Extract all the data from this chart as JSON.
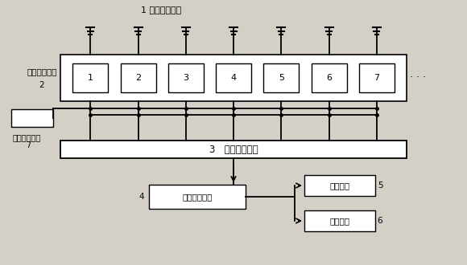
{
  "bg_color": "#d4d0c8",
  "box_color": "#ffffff",
  "box_edge": "#000000",
  "line_color": "#000000",
  "title_label": "1 现场采集单元",
  "signal_label": "信号调理单元\n2",
  "dc_label": "直流供电单元\n7",
  "data_acq_label": "3   数据采集单元",
  "cpu_label": "中央处理单元",
  "cpu_num": "4",
  "display_label": "数据显示",
  "display_num": "5",
  "save_label": "数据保存",
  "save_num": "6",
  "module_labels": [
    "1",
    "2",
    "3",
    "4",
    "5",
    "6",
    "7"
  ],
  "dots": "· · ·",
  "fig_width": 5.8,
  "fig_height": 3.3,
  "dpi": 100
}
